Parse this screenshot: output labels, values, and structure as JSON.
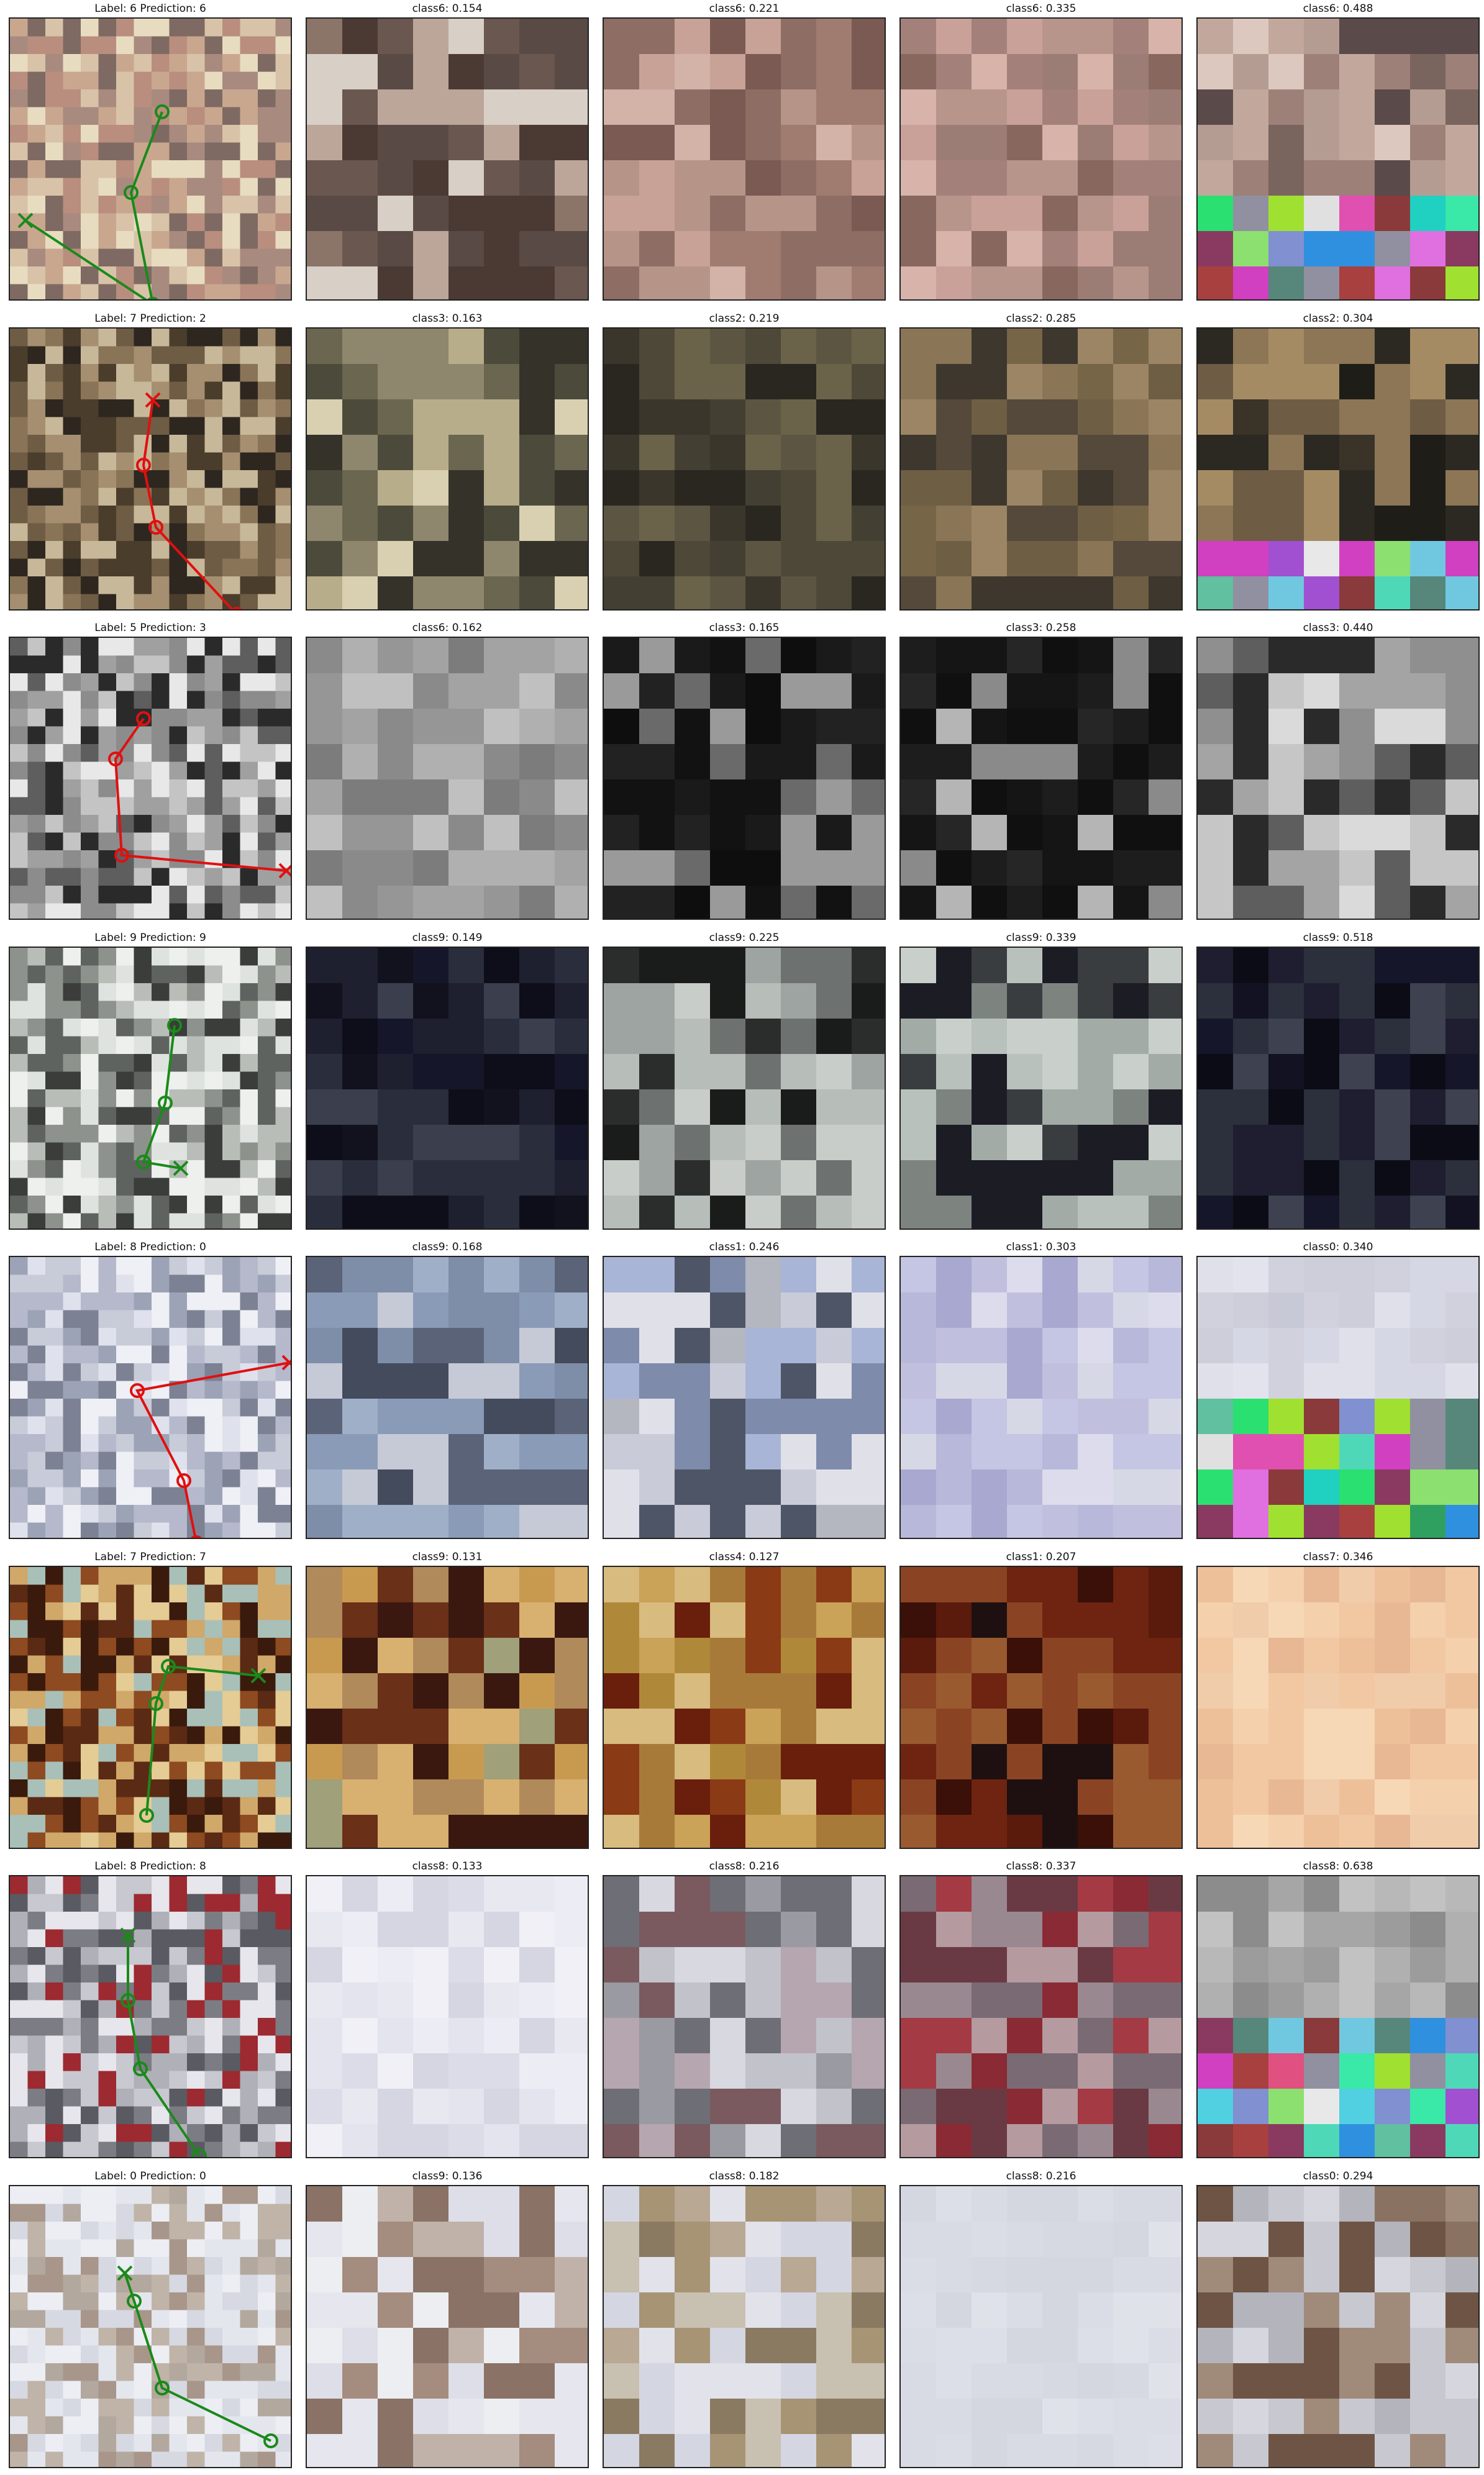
{
  "figure": {
    "rows": [
      {
        "titles": [
          "Label: 6 Prediction: 6",
          "class6: 0.154",
          "class6: 0.221",
          "class6: 0.335",
          "class6: 0.488"
        ],
        "path_color": "#1a8a1a",
        "palettes": {
          "image": [
            "#e8dcc0",
            "#c9a78f",
            "#b98e7e",
            "#d8c3a8",
            "#a88a7f",
            "#7e6a62"
          ],
          "p1": [
            "#4b3a33",
            "#8b7468",
            "#bca69a",
            "#6a574f",
            "#d8cfc6",
            "#5a4a45"
          ],
          "p2": [
            "#b69488",
            "#8e6d64",
            "#c8a296",
            "#a07c70",
            "#d3b2a8",
            "#7a5a52"
          ],
          "p3": [
            "#b8958b",
            "#a3817a",
            "#c9a199",
            "#9c7d76",
            "#d7b3aa",
            "#88675f"
          ],
          "p4": [
            "#9d8078",
            "#c2a89c",
            "#7a645e",
            "#ddc8bf",
            "#5a4a4a",
            "#b59c92"
          ]
        },
        "p4_bright_rows": 3
      },
      {
        "titles": [
          "Label: 7 Prediction: 2",
          "class3: 0.163",
          "class2: 0.219",
          "class2: 0.285",
          "class2: 0.304"
        ],
        "path_color": "#e01010",
        "palettes": {
          "image": [
            "#8a7457",
            "#6e5c44",
            "#c8b89a",
            "#4a3d2c",
            "#a58f70",
            "#2e2720"
          ],
          "p1": [
            "#4c4a3b",
            "#6b6650",
            "#b8ad8a",
            "#d8d0b0",
            "#35322a",
            "#8e876d"
          ],
          "p2": [
            "#4d4838",
            "#3a362b",
            "#5c5542",
            "#2a2721",
            "#6b6349",
            "#434033"
          ],
          "p3": [
            "#6e5e44",
            "#8a7656",
            "#54493a",
            "#9c8564",
            "#3e372d",
            "#776548"
          ],
          "p4": [
            "#1e1d18",
            "#2b2921",
            "#8c7656",
            "#a58b64",
            "#3a3328",
            "#6e5c44"
          ]
        },
        "p4_bright_rows": 2
      },
      {
        "titles": [
          "Label: 5 Prediction: 3",
          "class6: 0.162",
          "class3: 0.165",
          "class3: 0.258",
          "class3: 0.440"
        ],
        "path_color": "#e01010",
        "palettes": {
          "image": [
            "#8c8c8c",
            "#5e5e5e",
            "#2a2a2a",
            "#c4c4c4",
            "#a0a0a0",
            "#e8e8e8"
          ],
          "p1": [
            "#7c7c7c",
            "#8a8a8a",
            "#969696",
            "#a3a3a3",
            "#b0b0b0",
            "#c0c0c0"
          ],
          "p2": [
            "#121212",
            "#1a1a1a",
            "#0e0e0e",
            "#222222",
            "#6a6a6a",
            "#9a9a9a"
          ],
          "p3": [
            "#151515",
            "#1d1d1d",
            "#101010",
            "#262626",
            "#8a8a8a",
            "#b5b5b5"
          ],
          "p4": [
            "#2a2a2a",
            "#5e5e5e",
            "#8f8f8f",
            "#c6c6c6",
            "#a4a4a4",
            "#dadada"
          ]
        },
        "p4_bright_rows": 0
      },
      {
        "titles": [
          "Label: 9 Prediction: 9",
          "class9: 0.149",
          "class9: 0.225",
          "class9: 0.339",
          "class9: 0.518"
        ],
        "path_color": "#1a8a1a",
        "palettes": {
          "image": [
            "#dfe3df",
            "#b9bdb8",
            "#8d928d",
            "#3a3d3a",
            "#eef0ed",
            "#5f635f"
          ],
          "p1": [
            "#0e0e1a",
            "#16162a",
            "#1e2030",
            "#2a2d3c",
            "#12121e",
            "#3b3f4d"
          ],
          "p2": [
            "#b7bdb9",
            "#9ea4a1",
            "#2a2d2c",
            "#1a1c1c",
            "#c8cdca",
            "#6d7270"
          ],
          "p3": [
            "#b9c1bd",
            "#a3aba7",
            "#c9d0cc",
            "#3a3d40",
            "#7d8480",
            "#1c1c24"
          ],
          "p4": [
            "#0c0c16",
            "#16162a",
            "#1e1e30",
            "#2c2f3c",
            "#121222",
            "#3d4150"
          ]
        },
        "p4_bright_rows": 0
      },
      {
        "titles": [
          "Label: 8 Prediction: 0",
          "class9: 0.168",
          "class1: 0.246",
          "class1: 0.303",
          "class0: 0.340"
        ],
        "path_color": "#e01010",
        "palettes": {
          "image": [
            "#dfe1ec",
            "#c8cbd8",
            "#9da3b6",
            "#eef0f5",
            "#7c8294",
            "#b6b9cc"
          ],
          "p1": [
            "#8a9bb7",
            "#7e8ea8",
            "#5a6378",
            "#444b5c",
            "#a0afc8",
            "#c6cad6"
          ],
          "p2": [
            "#4e5566",
            "#7e8bab",
            "#a8b5d6",
            "#c9ccd8",
            "#e0e1e8",
            "#b4b6c0"
          ],
          "p3": [
            "#d7d8e6",
            "#b8b8da",
            "#c5c5e4",
            "#a8a8d0",
            "#dcdcec",
            "#c0c0de"
          ],
          "p4": [
            "#d6d7e4",
            "#cdced9",
            "#dfe0ea",
            "#c8c9d6",
            "#e2e3ec",
            "#d0d1dd"
          ]
        },
        "p4_bright_rows": 4
      },
      {
        "titles": [
          "Label: 7 Prediction: 7",
          "class9: 0.131",
          "class4: 0.127",
          "class1: 0.207",
          "class7: 0.346"
        ],
        "path_color": "#1a8a1a",
        "palettes": {
          "image": [
            "#5a2a14",
            "#8e4a20",
            "#d0a86a",
            "#e4cc94",
            "#3a1a0c",
            "#a8c0b8"
          ],
          "p1": [
            "#c89a50",
            "#d8b070",
            "#b08a5a",
            "#6a3018",
            "#a0a07a",
            "#3a1810"
          ],
          "p2": [
            "#b0883a",
            "#caa258",
            "#d8bb7e",
            "#8a3a14",
            "#6a1e0c",
            "#a87a3a"
          ],
          "p3": [
            "#5a1a0c",
            "#6e2410",
            "#8a4424",
            "#3a1008",
            "#1e1010",
            "#9a5a30"
          ],
          "p4": [
            "#f2c8a2",
            "#f4d0ac",
            "#eec09a",
            "#f6d8b6",
            "#e8b894",
            "#f0ccaa"
          ]
        },
        "p4_bright_rows": 0
      },
      {
        "titles": [
          "Label: 8 Prediction: 8",
          "class8: 0.133",
          "class8: 0.216",
          "class8: 0.337",
          "class8: 0.638"
        ],
        "path_color": "#1a8a1a",
        "palettes": {
          "image": [
            "#e6e6ec",
            "#c8c8d0",
            "#9c2a30",
            "#7c7c84",
            "#b0b0b8",
            "#5a5a62"
          ],
          "p1": [
            "#ececf4",
            "#e4e4ee",
            "#f0f0f6",
            "#dcdce8",
            "#e8e8f0",
            "#d6d6e2"
          ],
          "p2": [
            "#d8d8e0",
            "#9a9aa2",
            "#6e6e76",
            "#c2c2ca",
            "#b6a6b0",
            "#7a5a5e"
          ],
          "p3": [
            "#8a2a34",
            "#a33a44",
            "#7a6a74",
            "#b59aa0",
            "#9a8890",
            "#6a3a44"
          ],
          "p4": [
            "#9c9c9c",
            "#b0b0b0",
            "#8c8c8c",
            "#c2c2c2",
            "#a6a6a6",
            "#b8b8b8"
          ]
        },
        "p4_bright_rows": 4
      },
      {
        "titles": [
          "Label: 0 Prediction: 0",
          "class9: 0.136",
          "class8: 0.182",
          "class8: 0.216",
          "class0: 0.294"
        ],
        "path_color": "#1a8a1a",
        "palettes": {
          "image": [
            "#e4e6ee",
            "#d6d8e2",
            "#c0b4a8",
            "#eceef4",
            "#a8968a",
            "#b2a89e"
          ],
          "p1": [
            "#e6e6ee",
            "#dedee8",
            "#c0b2a8",
            "#8a7266",
            "#eceef2",
            "#a48c7e"
          ],
          "p2": [
            "#e2e2ea",
            "#b8a894",
            "#8a7a62",
            "#d4d6e2",
            "#c8c0b0",
            "#a69474"
          ],
          "p3": [
            "#dcdee8",
            "#d8dae4",
            "#e0e2ea",
            "#d4d6e0",
            "#dadce6",
            "#d6d8e2"
          ],
          "p4": [
            "#c8c8d0",
            "#b4b4bc",
            "#8a7262",
            "#6e5444",
            "#a08a7a",
            "#d6d6de"
          ]
        },
        "p4_bright_rows": 0
      }
    ],
    "bright_colors": [
      "#4fd8b8",
      "#56877a",
      "#8a3a3a",
      "#a050d0",
      "#3ae8a8",
      "#50d0e0",
      "#e05080",
      "#e8e8e8",
      "#a84040",
      "#8ce070",
      "#2ae070",
      "#8090d0",
      "#20d0c0",
      "#9090a0",
      "#a0e030",
      "#e0e0e0",
      "#70c8e0",
      "#e050b0",
      "#d040c0",
      "#e070e0",
      "#8a3a60",
      "#3090e0",
      "#30a060",
      "#60c0a0"
    ]
  }
}
